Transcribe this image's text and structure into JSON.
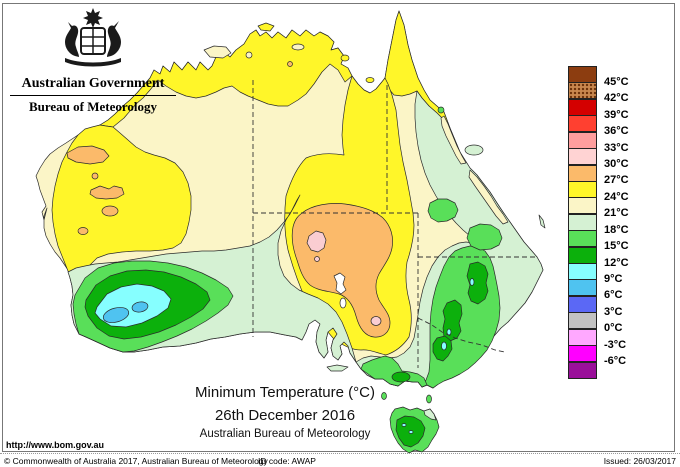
{
  "header": {
    "government": "Australian Government",
    "bureau": "Bureau of Meteorology"
  },
  "title": {
    "line1": "Minimum Temperature (°C)",
    "line2": "26th December 2016",
    "line3": "Australian Bureau of Meteorology"
  },
  "legend": {
    "entries": [
      {
        "color": "#8C3D10",
        "label": "45°C",
        "speckled": false
      },
      {
        "color": "#C8874E",
        "label": "42°C",
        "speckled": true
      },
      {
        "color": "#D40000",
        "label": "39°C",
        "speckled": false
      },
      {
        "color": "#FF4030",
        "label": "36°C",
        "speckled": false
      },
      {
        "color": "#FF9E9E",
        "label": "33°C",
        "speckled": false
      },
      {
        "color": "#FFD3D3",
        "label": "30°C",
        "speckled": false
      },
      {
        "color": "#FBBA6A",
        "label": "27°C",
        "speckled": false
      },
      {
        "color": "#FFF629",
        "label": "24°C",
        "speckled": false
      },
      {
        "color": "#FBF5C7",
        "label": "21°C",
        "speckled": false
      },
      {
        "color": "#D5F1D3",
        "label": "18°C",
        "speckled": false
      },
      {
        "color": "#59DF59",
        "label": "15°C",
        "speckled": false
      },
      {
        "color": "#0CB00C",
        "label": "12°C",
        "speckled": false
      },
      {
        "color": "#86FFFF",
        "label": "9°C",
        "speckled": false
      },
      {
        "color": "#4FC3F0",
        "label": "6°C",
        "speckled": false
      },
      {
        "color": "#5B68F5",
        "label": "3°C",
        "speckled": false
      },
      {
        "color": "#C2C2C2",
        "label": "0°C",
        "speckled": false
      },
      {
        "color": "#FFA8FF",
        "label": "-3°C",
        "speckled": false
      },
      {
        "color": "#FF00FF",
        "label": "-6°C",
        "speckled": false
      },
      {
        "color": "#9A0F9A",
        "label": null,
        "speckled": false
      }
    ]
  },
  "map": {
    "colors": {
      "ocean": "#FFFFFF",
      "cream": "#FBF5C7",
      "yellow": "#FFF629",
      "orange": "#FBBA6A",
      "pink": "#FACDD2",
      "palegreen": "#D5F1D3",
      "green": "#59DF59",
      "darkgreen": "#0CB00C",
      "cyan": "#86FFFF",
      "blue": "#4FC3F0",
      "white": "#FFFFFF",
      "outline": "#1a1a1a",
      "border": "#333333"
    }
  },
  "footer": {
    "url": "http://www.bom.gov.au",
    "copyright": "© Commonwealth of Australia 2017, Australian Bureau of Meteorology",
    "id_code": "ID code: AWAP",
    "issued": "Issued: 26/03/2017"
  }
}
